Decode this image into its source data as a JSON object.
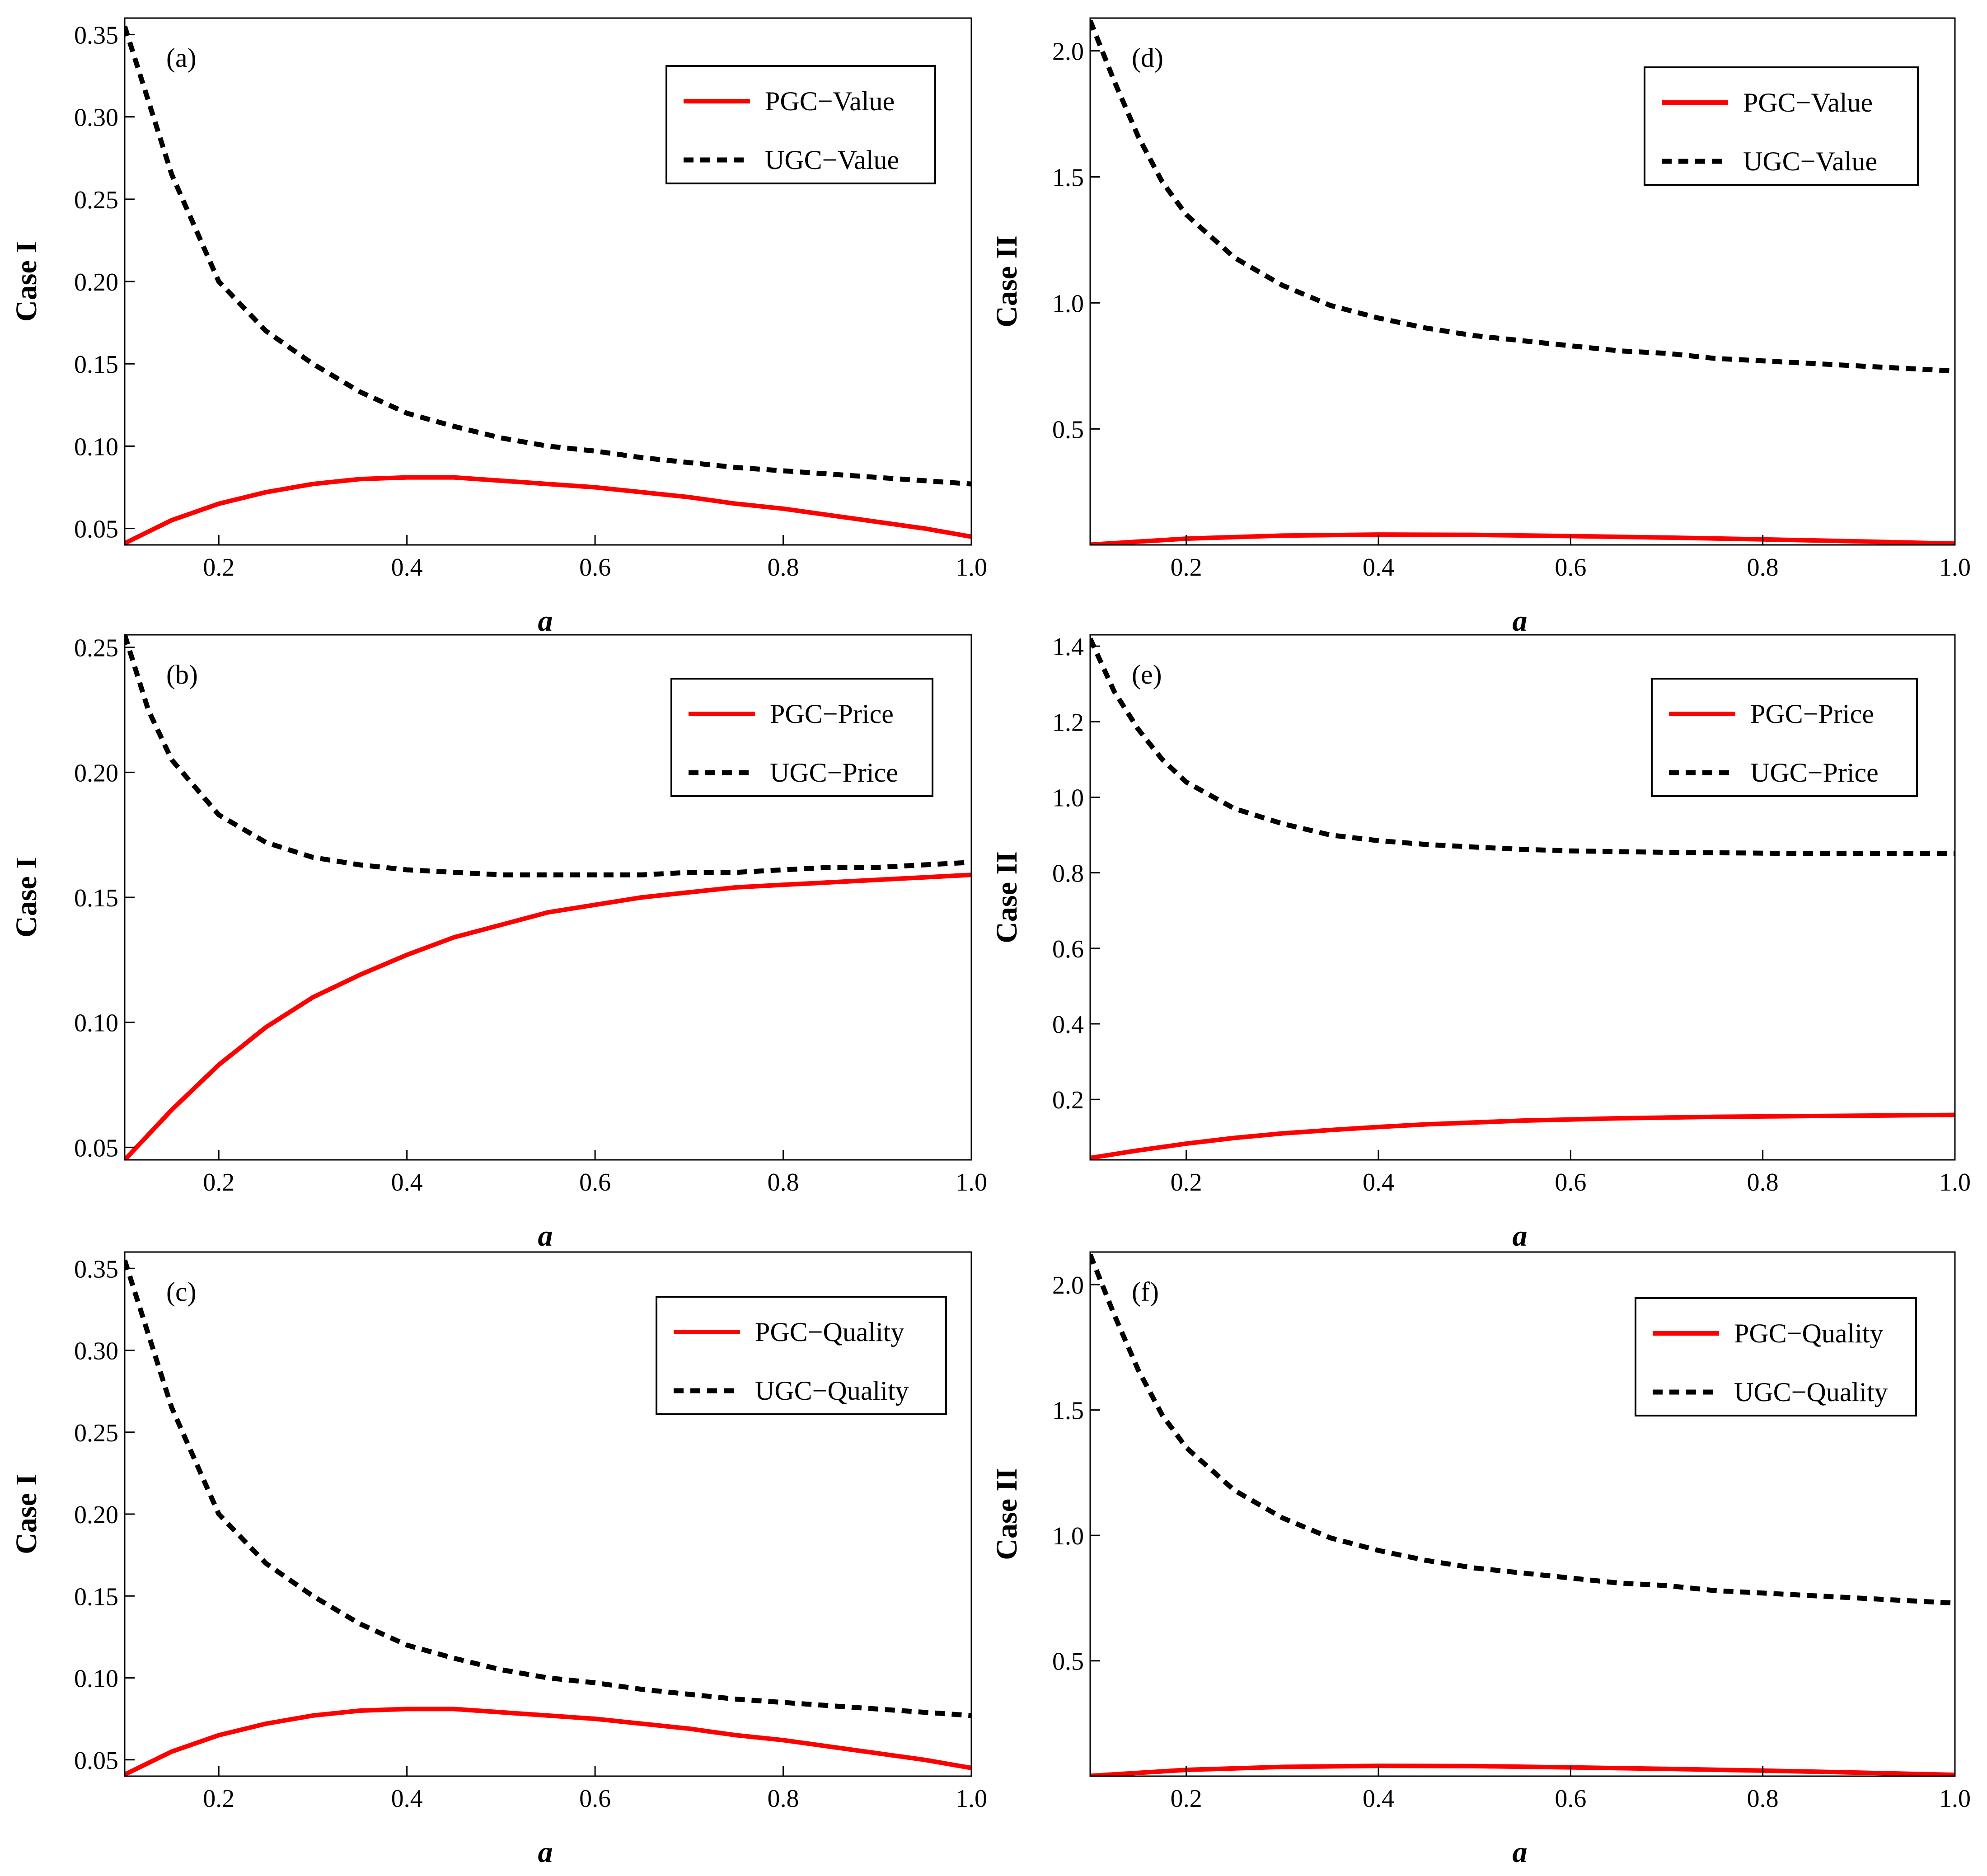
{
  "colors": {
    "pgc": "#ff0000",
    "ugc": "#000000"
  },
  "chart_data": [
    {
      "type": "line",
      "panel_label": "(a)",
      "xlabel": "a",
      "ylabel": "Case I",
      "xlim": [
        0.1,
        1.0
      ],
      "ylim": [
        0.04,
        0.36
      ],
      "xticks": [
        0.2,
        0.4,
        0.6,
        0.8,
        1.0
      ],
      "xtick_labels": [
        "0.2",
        "0.4",
        "0.6",
        "0.8",
        "1.0"
      ],
      "yticks": [
        0.05,
        0.1,
        0.15,
        0.2,
        0.25,
        0.3,
        0.35
      ],
      "ytick_labels": [
        "0.05",
        "0.10",
        "0.15",
        "0.20",
        "0.25",
        "0.30",
        "0.35"
      ],
      "legend_position": "top-right",
      "series": [
        {
          "name": "PGC−Value",
          "style": "solid",
          "color": "#ff0000",
          "x": [
            0.1,
            0.15,
            0.2,
            0.25,
            0.3,
            0.35,
            0.4,
            0.45,
            0.5,
            0.55,
            0.6,
            0.65,
            0.7,
            0.75,
            0.8,
            0.85,
            0.9,
            0.95,
            1.0
          ],
          "y": [
            0.041,
            0.055,
            0.065,
            0.072,
            0.077,
            0.08,
            0.081,
            0.081,
            0.079,
            0.077,
            0.075,
            0.072,
            0.069,
            0.065,
            0.062,
            0.058,
            0.054,
            0.05,
            0.045
          ]
        },
        {
          "name": "UGC−Value",
          "style": "dashed",
          "color": "#000000",
          "x": [
            0.1,
            0.15,
            0.2,
            0.25,
            0.3,
            0.35,
            0.4,
            0.45,
            0.5,
            0.55,
            0.6,
            0.65,
            0.7,
            0.75,
            0.8,
            0.85,
            0.9,
            0.95,
            1.0
          ],
          "y": [
            0.355,
            0.265,
            0.2,
            0.17,
            0.15,
            0.133,
            0.12,
            0.112,
            0.105,
            0.1,
            0.097,
            0.093,
            0.09,
            0.087,
            0.085,
            0.083,
            0.081,
            0.079,
            0.077
          ]
        }
      ]
    },
    {
      "type": "line",
      "panel_label": "(b)",
      "xlabel": "a",
      "ylabel": "Case I",
      "xlim": [
        0.1,
        1.0
      ],
      "ylim": [
        0.045,
        0.255
      ],
      "xticks": [
        0.2,
        0.4,
        0.6,
        0.8,
        1.0
      ],
      "xtick_labels": [
        "0.2",
        "0.4",
        "0.6",
        "0.8",
        "1.0"
      ],
      "yticks": [
        0.05,
        0.1,
        0.15,
        0.2,
        0.25
      ],
      "ytick_labels": [
        "0.05",
        "0.10",
        "0.15",
        "0.20",
        "0.25"
      ],
      "legend_position": "top-right",
      "series": [
        {
          "name": "PGC−Price",
          "style": "solid",
          "color": "#ff0000",
          "x": [
            0.1,
            0.15,
            0.2,
            0.25,
            0.3,
            0.35,
            0.4,
            0.45,
            0.5,
            0.55,
            0.6,
            0.65,
            0.7,
            0.75,
            0.8,
            0.85,
            0.9,
            0.95,
            1.0
          ],
          "y": [
            0.045,
            0.065,
            0.083,
            0.098,
            0.11,
            0.119,
            0.127,
            0.134,
            0.139,
            0.144,
            0.147,
            0.15,
            0.152,
            0.154,
            0.155,
            0.156,
            0.157,
            0.158,
            0.159
          ]
        },
        {
          "name": "UGC−Price",
          "style": "dashed",
          "color": "#000000",
          "x": [
            0.1,
            0.125,
            0.15,
            0.2,
            0.25,
            0.3,
            0.35,
            0.4,
            0.45,
            0.5,
            0.55,
            0.6,
            0.65,
            0.7,
            0.75,
            0.8,
            0.85,
            0.9,
            0.95,
            1.0
          ],
          "y": [
            0.255,
            0.225,
            0.205,
            0.183,
            0.172,
            0.166,
            0.163,
            0.161,
            0.16,
            0.159,
            0.159,
            0.159,
            0.159,
            0.16,
            0.16,
            0.161,
            0.162,
            0.162,
            0.163,
            0.164
          ]
        }
      ]
    },
    {
      "type": "line",
      "panel_label": "(c)",
      "xlabel": "a",
      "ylabel": "Case I",
      "xlim": [
        0.1,
        1.0
      ],
      "ylim": [
        0.04,
        0.36
      ],
      "xticks": [
        0.2,
        0.4,
        0.6,
        0.8,
        1.0
      ],
      "xtick_labels": [
        "0.2",
        "0.4",
        "0.6",
        "0.8",
        "1.0"
      ],
      "yticks": [
        0.05,
        0.1,
        0.15,
        0.2,
        0.25,
        0.3,
        0.35
      ],
      "ytick_labels": [
        "0.05",
        "0.10",
        "0.15",
        "0.20",
        "0.25",
        "0.30",
        "0.35"
      ],
      "legend_position": "top-right",
      "series": [
        {
          "name": "PGC−Quality",
          "style": "solid",
          "color": "#ff0000",
          "x": [
            0.1,
            0.15,
            0.2,
            0.25,
            0.3,
            0.35,
            0.4,
            0.45,
            0.5,
            0.55,
            0.6,
            0.65,
            0.7,
            0.75,
            0.8,
            0.85,
            0.9,
            0.95,
            1.0
          ],
          "y": [
            0.041,
            0.055,
            0.065,
            0.072,
            0.077,
            0.08,
            0.081,
            0.081,
            0.079,
            0.077,
            0.075,
            0.072,
            0.069,
            0.065,
            0.062,
            0.058,
            0.054,
            0.05,
            0.045
          ]
        },
        {
          "name": "UGC−Quality",
          "style": "dashed",
          "color": "#000000",
          "x": [
            0.1,
            0.15,
            0.2,
            0.25,
            0.3,
            0.35,
            0.4,
            0.45,
            0.5,
            0.55,
            0.6,
            0.65,
            0.7,
            0.75,
            0.8,
            0.85,
            0.9,
            0.95,
            1.0
          ],
          "y": [
            0.355,
            0.265,
            0.2,
            0.17,
            0.15,
            0.133,
            0.12,
            0.112,
            0.105,
            0.1,
            0.097,
            0.093,
            0.09,
            0.087,
            0.085,
            0.083,
            0.081,
            0.079,
            0.077
          ]
        }
      ]
    },
    {
      "type": "line",
      "panel_label": "(d)",
      "xlabel": "a",
      "ylabel": "Case II",
      "xlim": [
        0.1,
        1.0
      ],
      "ylim": [
        0.04,
        2.13
      ],
      "xticks": [
        0.2,
        0.4,
        0.6,
        0.8,
        1.0
      ],
      "xtick_labels": [
        "0.2",
        "0.4",
        "0.6",
        "0.8",
        "1.0"
      ],
      "yticks": [
        0.5,
        1.0,
        1.5,
        2.0
      ],
      "ytick_labels": [
        "0.5",
        "1.0",
        "1.5",
        "2.0"
      ],
      "legend_position": "top-right",
      "series": [
        {
          "name": "PGC−Value",
          "style": "solid",
          "color": "#ff0000",
          "x": [
            0.1,
            0.2,
            0.3,
            0.4,
            0.5,
            0.6,
            0.7,
            0.8,
            0.9,
            1.0
          ],
          "y": [
            0.041,
            0.065,
            0.077,
            0.081,
            0.08,
            0.075,
            0.069,
            0.062,
            0.054,
            0.045
          ]
        },
        {
          "name": "UGC−Value",
          "style": "dashed",
          "color": "#000000",
          "x": [
            0.1,
            0.125,
            0.15,
            0.175,
            0.2,
            0.25,
            0.3,
            0.35,
            0.4,
            0.45,
            0.5,
            0.55,
            0.6,
            0.65,
            0.7,
            0.75,
            0.8,
            0.85,
            0.9,
            0.95,
            1.0
          ],
          "y": [
            2.12,
            1.88,
            1.66,
            1.48,
            1.35,
            1.18,
            1.07,
            0.99,
            0.94,
            0.9,
            0.87,
            0.85,
            0.83,
            0.81,
            0.8,
            0.78,
            0.77,
            0.76,
            0.75,
            0.74,
            0.73
          ]
        }
      ]
    },
    {
      "type": "line",
      "panel_label": "(e)",
      "xlabel": "a",
      "ylabel": "Case II",
      "xlim": [
        0.1,
        1.0
      ],
      "ylim": [
        0.04,
        1.43
      ],
      "xticks": [
        0.2,
        0.4,
        0.6,
        0.8,
        1.0
      ],
      "xtick_labels": [
        "0.2",
        "0.4",
        "0.6",
        "0.8",
        "1.0"
      ],
      "yticks": [
        0.2,
        0.4,
        0.6,
        0.8,
        1.0,
        1.2,
        1.4
      ],
      "ytick_labels": [
        "0.2",
        "0.4",
        "0.6",
        "0.8",
        "1.0",
        "1.2",
        "1.4"
      ],
      "legend_position": "top-right",
      "series": [
        {
          "name": "PGC−Price",
          "style": "solid",
          "color": "#ff0000",
          "x": [
            0.1,
            0.15,
            0.2,
            0.25,
            0.3,
            0.35,
            0.4,
            0.45,
            0.5,
            0.55,
            0.6,
            0.65,
            0.7,
            0.75,
            0.8,
            0.85,
            0.9,
            0.95,
            1.0
          ],
          "y": [
            0.045,
            0.065,
            0.083,
            0.098,
            0.11,
            0.119,
            0.127,
            0.134,
            0.139,
            0.144,
            0.147,
            0.15,
            0.152,
            0.154,
            0.155,
            0.156,
            0.157,
            0.158,
            0.159
          ]
        },
        {
          "name": "UGC−Price",
          "style": "dashed",
          "color": "#000000",
          "x": [
            0.1,
            0.125,
            0.15,
            0.175,
            0.2,
            0.25,
            0.3,
            0.35,
            0.4,
            0.45,
            0.5,
            0.55,
            0.6,
            0.65,
            0.7,
            0.75,
            0.8,
            0.85,
            0.9,
            0.95,
            1.0
          ],
          "y": [
            1.42,
            1.28,
            1.18,
            1.1,
            1.04,
            0.97,
            0.93,
            0.9,
            0.885,
            0.875,
            0.868,
            0.862,
            0.858,
            0.856,
            0.854,
            0.853,
            0.852,
            0.851,
            0.851,
            0.851,
            0.851
          ]
        }
      ]
    },
    {
      "type": "line",
      "panel_label": "(f)",
      "xlabel": "a",
      "ylabel": "Case II",
      "xlim": [
        0.1,
        1.0
      ],
      "ylim": [
        0.04,
        2.13
      ],
      "xticks": [
        0.2,
        0.4,
        0.6,
        0.8,
        1.0
      ],
      "xtick_labels": [
        "0.2",
        "0.4",
        "0.6",
        "0.8",
        "1.0"
      ],
      "yticks": [
        0.5,
        1.0,
        1.5,
        2.0
      ],
      "ytick_labels": [
        "0.5",
        "1.0",
        "1.5",
        "2.0"
      ],
      "legend_position": "top-right",
      "series": [
        {
          "name": "PGC−Quality",
          "style": "solid",
          "color": "#ff0000",
          "x": [
            0.1,
            0.2,
            0.3,
            0.4,
            0.5,
            0.6,
            0.7,
            0.8,
            0.9,
            1.0
          ],
          "y": [
            0.041,
            0.065,
            0.077,
            0.081,
            0.08,
            0.075,
            0.069,
            0.062,
            0.054,
            0.045
          ]
        },
        {
          "name": "UGC−Quality",
          "style": "dashed",
          "color": "#000000",
          "x": [
            0.1,
            0.125,
            0.15,
            0.175,
            0.2,
            0.25,
            0.3,
            0.35,
            0.4,
            0.45,
            0.5,
            0.55,
            0.6,
            0.65,
            0.7,
            0.75,
            0.8,
            0.85,
            0.9,
            0.95,
            1.0
          ],
          "y": [
            2.12,
            1.88,
            1.66,
            1.48,
            1.35,
            1.18,
            1.07,
            0.99,
            0.94,
            0.9,
            0.87,
            0.85,
            0.83,
            0.81,
            0.8,
            0.78,
            0.77,
            0.76,
            0.75,
            0.74,
            0.73
          ]
        }
      ]
    }
  ]
}
